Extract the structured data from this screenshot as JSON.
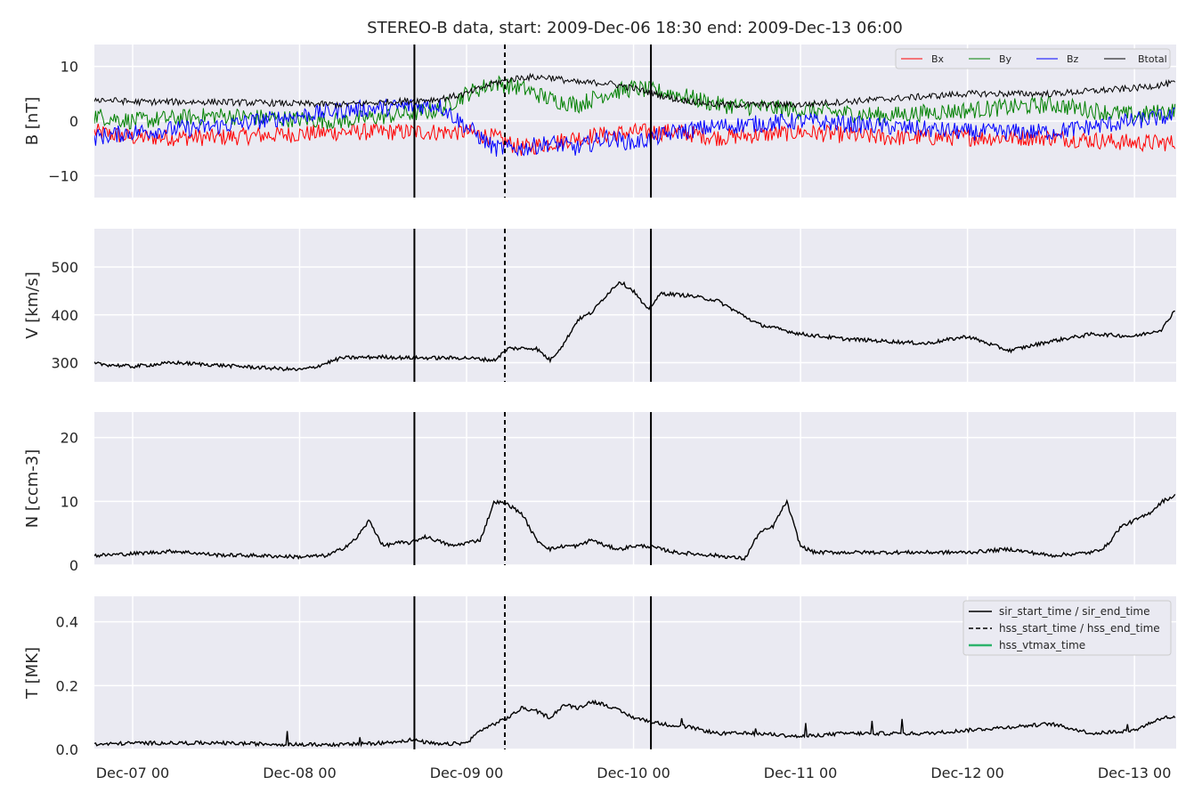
{
  "title": "STEREO-B data, start: 2009-Dec-06 18:30  end: 2009-Dec-13 06:00",
  "x_ticks": [
    "Dec-07 00",
    "Dec-08 00",
    "Dec-09 00",
    "Dec-10 00",
    "Dec-11 00",
    "Dec-12 00",
    "Dec-13 00"
  ],
  "colors": {
    "panel_bg": "#eaeaf2",
    "grid": "#ffffff",
    "Bx": "#ff0000",
    "By": "#008000",
    "Bz": "#0000ff",
    "Btotal": "#000000",
    "vtmax": "#2db36b"
  },
  "chart_data": [
    {
      "type": "line",
      "ylabel": "B [nT]",
      "xlim_hours": [
        -5.5,
        150
      ],
      "ylim": [
        -14,
        14
      ],
      "yticks": [
        10,
        0,
        -10
      ],
      "ytick_labels": [
        "10",
        "0",
        "−10"
      ],
      "legend": {
        "placement": "top-right",
        "entries": [
          "Bx",
          "By",
          "Bz",
          "Btotal"
        ]
      },
      "series": [
        {
          "name": "Bx",
          "x_hours": [
            -5.5,
            0,
            12,
            30,
            48,
            52,
            56,
            60,
            64,
            72,
            78,
            84,
            96,
            108,
            120,
            132,
            144,
            150
          ],
          "y": [
            -2,
            -3,
            -3,
            -2,
            -2,
            -3,
            -5,
            -4,
            -3,
            -2,
            -2,
            -3,
            -2,
            -3,
            -3,
            -3,
            -4,
            -4
          ]
        },
        {
          "name": "By",
          "x_hours": [
            -5.5,
            0,
            12,
            30,
            44,
            48,
            52,
            56,
            60,
            64,
            68,
            72,
            78,
            84,
            96,
            108,
            120,
            132,
            144,
            150
          ],
          "y": [
            1,
            0,
            1,
            0,
            2,
            5,
            7,
            6,
            4,
            3,
            5,
            6,
            5,
            3,
            2,
            1,
            2,
            3,
            1,
            2
          ]
        },
        {
          "name": "Bz",
          "x_hours": [
            -5.5,
            0,
            12,
            30,
            44,
            48,
            52,
            56,
            60,
            64,
            68,
            72,
            78,
            84,
            96,
            108,
            120,
            132,
            144,
            150
          ],
          "y": [
            -3,
            -2,
            -1,
            2,
            3,
            -1,
            -5,
            -5,
            -4,
            -5,
            -3,
            -4,
            -2,
            -1,
            0,
            -1,
            -2,
            -2,
            0,
            1
          ]
        },
        {
          "name": "Btotal",
          "x_hours": [
            -5.5,
            0,
            12,
            30,
            44,
            48,
            52,
            56,
            60,
            64,
            68,
            72,
            78,
            84,
            96,
            108,
            120,
            132,
            144,
            150
          ],
          "y": [
            4,
            3.5,
            3.5,
            3,
            4,
            5,
            7,
            8,
            8,
            7,
            7,
            6,
            4,
            3,
            3,
            4,
            5,
            5,
            6,
            7
          ]
        }
      ],
      "vlines_hours": [
        {
          "x": 40.5,
          "style": "solid"
        },
        {
          "x": 53.5,
          "style": "dashed"
        },
        {
          "x": 74.5,
          "style": "solid"
        }
      ]
    },
    {
      "type": "line",
      "ylabel": "V [km/s]",
      "xlim_hours": [
        -5.5,
        150
      ],
      "ylim": [
        260,
        580
      ],
      "yticks": [
        500,
        400,
        300
      ],
      "ytick_labels": [
        "500",
        "400",
        "300"
      ],
      "series": [
        {
          "name": "",
          "x_hours": [
            -5.5,
            0,
            6,
            12,
            18,
            24,
            26,
            30,
            36,
            40,
            48,
            52,
            54,
            58,
            60,
            62,
            64,
            66,
            68,
            70,
            72,
            74,
            76,
            80,
            84,
            90,
            96,
            102,
            108,
            114,
            120,
            126,
            132,
            138,
            144,
            148,
            150
          ],
          "y": [
            298,
            292,
            300,
            295,
            290,
            285,
            290,
            310,
            312,
            310,
            310,
            305,
            330,
            330,
            305,
            340,
            390,
            405,
            440,
            470,
            450,
            410,
            445,
            440,
            430,
            380,
            360,
            350,
            345,
            340,
            355,
            325,
            345,
            360,
            355,
            370,
            415
          ]
        }
      ],
      "vlines_hours": [
        {
          "x": 40.5,
          "style": "solid"
        },
        {
          "x": 53.5,
          "style": "dashed"
        },
        {
          "x": 74.5,
          "style": "solid"
        }
      ]
    },
    {
      "type": "line",
      "ylabel": "N [ccm-3]",
      "xlim_hours": [
        -5.5,
        150
      ],
      "ylim": [
        0,
        24
      ],
      "yticks": [
        20,
        10,
        0
      ],
      "ytick_labels": [
        "20",
        "10",
        "0"
      ],
      "series": [
        {
          "name": "",
          "x_hours": [
            -5.5,
            0,
            6,
            12,
            18,
            24,
            28,
            30,
            32,
            34,
            36,
            38,
            40,
            42,
            46,
            50,
            52,
            54,
            56,
            58,
            60,
            62,
            64,
            66,
            68,
            70,
            72,
            74,
            78,
            84,
            88,
            90,
            92,
            94,
            96,
            98,
            102,
            108,
            114,
            120,
            126,
            132,
            138,
            140,
            142,
            144,
            146,
            148,
            150
          ],
          "y": [
            1.5,
            1.8,
            2.2,
            1.6,
            1.5,
            1.3,
            1.5,
            2.5,
            4,
            7,
            3,
            3.5,
            3.5,
            4.5,
            3,
            4,
            10,
            9.5,
            8,
            4,
            2.5,
            3,
            3,
            4,
            3,
            2.5,
            3,
            3,
            2,
            1.5,
            1,
            5,
            6,
            10,
            3,
            2,
            2,
            2,
            2,
            2,
            2.5,
            1.5,
            2,
            3,
            6,
            7,
            8,
            10,
            11
          ]
        }
      ],
      "vlines_hours": [
        {
          "x": 40.5,
          "style": "solid"
        },
        {
          "x": 53.5,
          "style": "dashed"
        },
        {
          "x": 74.5,
          "style": "solid"
        }
      ]
    },
    {
      "type": "line",
      "ylabel": "T [MK]",
      "xlim_hours": [
        -5.5,
        150
      ],
      "ylim": [
        0,
        0.48
      ],
      "yticks": [
        0.4,
        0.2,
        0.0
      ],
      "ytick_labels": [
        "0.4",
        "0.2",
        "0.0"
      ],
      "legend": {
        "placement": "top-right",
        "entries": [
          "sir_start_time / sir_end_time",
          "hss_start_time / hss_end_time",
          "hss_vtmax_time"
        ]
      },
      "series": [
        {
          "name": "",
          "x_hours": [
            -5.5,
            0,
            12,
            24,
            30,
            36,
            40,
            44,
            48,
            50,
            52,
            54,
            56,
            58,
            60,
            62,
            64,
            66,
            68,
            70,
            72,
            74,
            76,
            80,
            84,
            90,
            96,
            102,
            108,
            114,
            120,
            126,
            132,
            138,
            144,
            146,
            148,
            150
          ],
          "y": [
            0.015,
            0.02,
            0.02,
            0.015,
            0.015,
            0.02,
            0.03,
            0.015,
            0.02,
            0.06,
            0.08,
            0.1,
            0.13,
            0.12,
            0.1,
            0.14,
            0.13,
            0.15,
            0.14,
            0.12,
            0.1,
            0.09,
            0.08,
            0.07,
            0.05,
            0.05,
            0.04,
            0.05,
            0.05,
            0.05,
            0.06,
            0.07,
            0.08,
            0.05,
            0.06,
            0.08,
            0.1,
            0.1
          ]
        }
      ],
      "vlines_hours": [
        {
          "x": 40.5,
          "style": "solid"
        },
        {
          "x": 53.5,
          "style": "dashed"
        },
        {
          "x": 74.5,
          "style": "solid"
        }
      ]
    }
  ]
}
